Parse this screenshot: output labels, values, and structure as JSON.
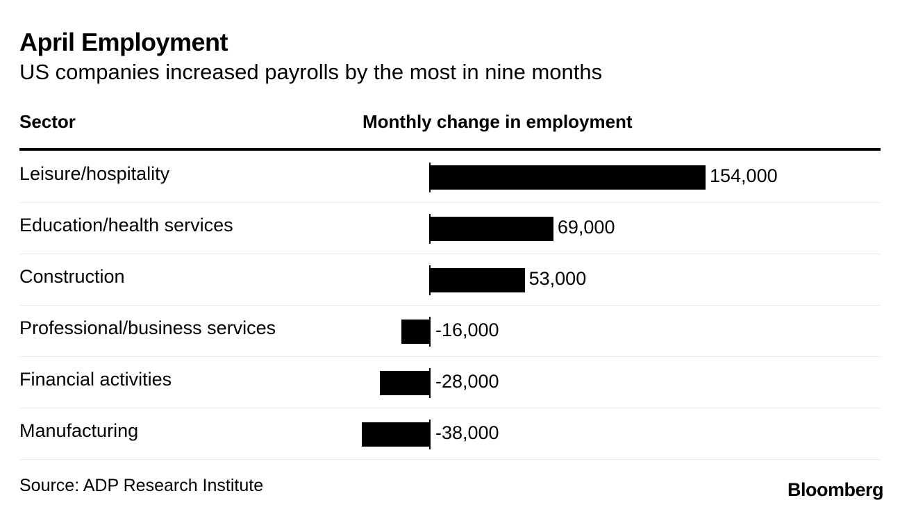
{
  "chart_data": {
    "type": "bar",
    "orientation": "horizontal",
    "title": "April Employment",
    "subtitle": "US companies increased payrolls by the most in nine months",
    "column_headers": {
      "sector": "Sector",
      "change": "Monthly change in employment"
    },
    "categories": [
      "Leisure/hospitality",
      "Education/health services",
      "Construction",
      "Professional/business services",
      "Financial activities",
      "Manufacturing"
    ],
    "values": [
      154000,
      69000,
      53000,
      -16000,
      -28000,
      -38000
    ],
    "value_labels": [
      "154,000",
      "69,000",
      "53,000",
      "-16,000",
      "-28,000",
      "-38,000"
    ],
    "xlim": [
      -38000,
      154000
    ],
    "bar_color": "#000000",
    "source": "Source: ADP Research Institute"
  },
  "branding": {
    "logo_text": "Bloomberg"
  }
}
